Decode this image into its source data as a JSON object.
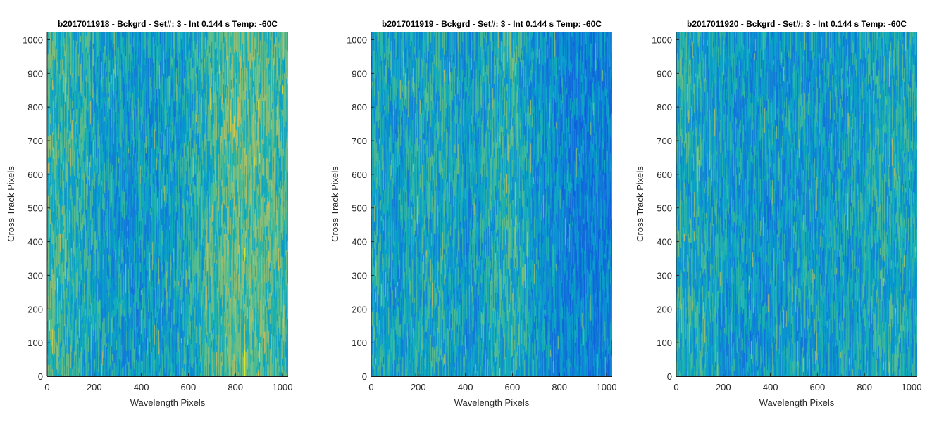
{
  "chart_data": [
    {
      "type": "heatmap",
      "title": "b2017011918 - Bckgrd - Set#: 3 - Int 0.144 s Temp: -60C",
      "xlabel": "Wavelength Pixels",
      "ylabel": "Cross Track Pixels",
      "xlim": [
        0,
        1024
      ],
      "ylim": [
        0,
        1024
      ],
      "xticks": [
        0,
        200,
        400,
        600,
        800,
        1000
      ],
      "yticks": [
        0,
        100,
        200,
        300,
        400,
        500,
        600,
        700,
        800,
        900,
        1000
      ],
      "colormap": "parula",
      "column_profile": {
        "x": [
          0,
          100,
          200,
          300,
          400,
          500,
          600,
          700,
          800,
          900,
          1024
        ],
        "level": [
          0.62,
          0.56,
          0.5,
          0.46,
          0.44,
          0.46,
          0.5,
          0.58,
          0.66,
          0.64,
          0.58
        ]
      }
    },
    {
      "type": "heatmap",
      "title": "b2017011919 - Bckgrd - Set#: 3 - Int 0.144 s Temp: -60C",
      "xlabel": "Wavelength Pixels",
      "ylabel": "Cross Track Pixels",
      "xlim": [
        0,
        1024
      ],
      "ylim": [
        0,
        1024
      ],
      "xticks": [
        0,
        200,
        400,
        600,
        800,
        1000
      ],
      "yticks": [
        0,
        100,
        200,
        300,
        400,
        500,
        600,
        700,
        800,
        900,
        1000
      ],
      "colormap": "parula",
      "column_profile": {
        "x": [
          0,
          100,
          200,
          300,
          400,
          500,
          600,
          700,
          800,
          900,
          1024
        ],
        "level": [
          0.52,
          0.46,
          0.5,
          0.52,
          0.44,
          0.5,
          0.56,
          0.44,
          0.38,
          0.36,
          0.36
        ]
      }
    },
    {
      "type": "heatmap",
      "title": "b2017011920 - Bckgrd - Set#: 3 - Int 0.144 s Temp: -60C",
      "xlabel": "Wavelength Pixels",
      "ylabel": "Cross Track Pixels",
      "xlim": [
        0,
        1024
      ],
      "ylim": [
        0,
        1024
      ],
      "xticks": [
        0,
        200,
        400,
        600,
        800,
        1000
      ],
      "yticks": [
        0,
        100,
        200,
        300,
        400,
        500,
        600,
        700,
        800,
        900,
        1000
      ],
      "colormap": "parula",
      "column_profile": {
        "x": [
          0,
          100,
          200,
          300,
          400,
          500,
          600,
          700,
          800,
          900,
          1024
        ],
        "level": [
          0.54,
          0.5,
          0.46,
          0.44,
          0.44,
          0.46,
          0.46,
          0.46,
          0.48,
          0.52,
          0.48
        ]
      }
    }
  ]
}
